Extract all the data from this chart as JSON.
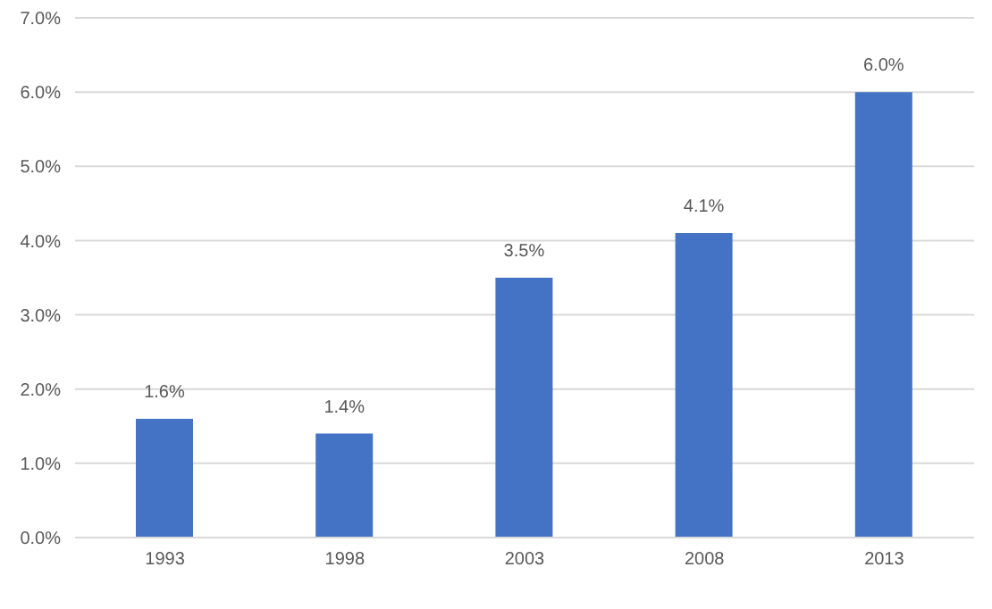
{
  "chart_data": {
    "type": "bar",
    "categories": [
      "1993",
      "1998",
      "2003",
      "2008",
      "2013"
    ],
    "values": [
      1.6,
      1.4,
      3.5,
      4.1,
      6.0
    ],
    "value_labels": [
      "1.6%",
      "1.4%",
      "3.5%",
      "4.1%",
      "6.0%"
    ],
    "color": "#4472c4",
    "ylim": [
      0,
      7
    ],
    "yticks": [
      {
        "value": 0,
        "label": "0.0%"
      },
      {
        "value": 1,
        "label": "1.0%"
      },
      {
        "value": 2,
        "label": "2.0%"
      },
      {
        "value": 3,
        "label": "3.0%"
      },
      {
        "value": 4,
        "label": "4.0%"
      },
      {
        "value": 5,
        "label": "5.0%"
      },
      {
        "value": 6,
        "label": "6.0%"
      },
      {
        "value": 7,
        "label": "7.0%"
      }
    ],
    "grid": "y"
  }
}
